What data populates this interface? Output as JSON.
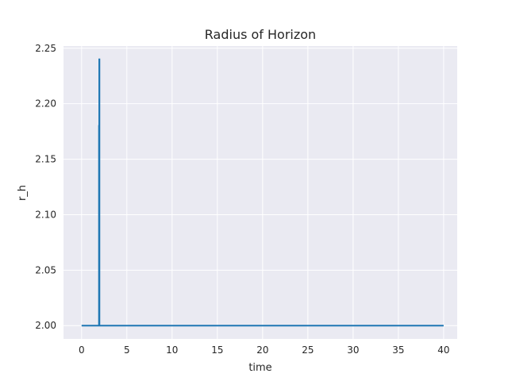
{
  "chart_data": {
    "type": "line",
    "title": "Radius of Horizon",
    "xlabel": "time",
    "ylabel": "r_h",
    "xlim": [
      -2,
      41.5
    ],
    "ylim": [
      1.988,
      2.252
    ],
    "xticks": [
      0,
      5,
      10,
      15,
      20,
      25,
      30,
      35,
      40
    ],
    "yticks": [
      2.0,
      2.05,
      2.1,
      2.15,
      2.2,
      2.25
    ],
    "xtick_labels": [
      "0",
      "5",
      "10",
      "15",
      "20",
      "25",
      "30",
      "35",
      "40"
    ],
    "ytick_labels": [
      "2.00",
      "2.05",
      "2.10",
      "2.15",
      "2.20",
      "2.25"
    ],
    "grid": true,
    "colors": {
      "background": "#eaeaf2",
      "grid": "#ffffff",
      "line": "#1f77b4"
    },
    "series": [
      {
        "x": [
          0,
          1.9,
          1.92,
          1.92,
          1.95,
          1.95,
          1.97,
          1.97,
          2.0,
          2.0,
          40
        ],
        "y": [
          2.0,
          2.0,
          2.0,
          2.18,
          2.18,
          2.24,
          2.24,
          2.0,
          2.0,
          2.0,
          2.0
        ]
      }
    ]
  }
}
